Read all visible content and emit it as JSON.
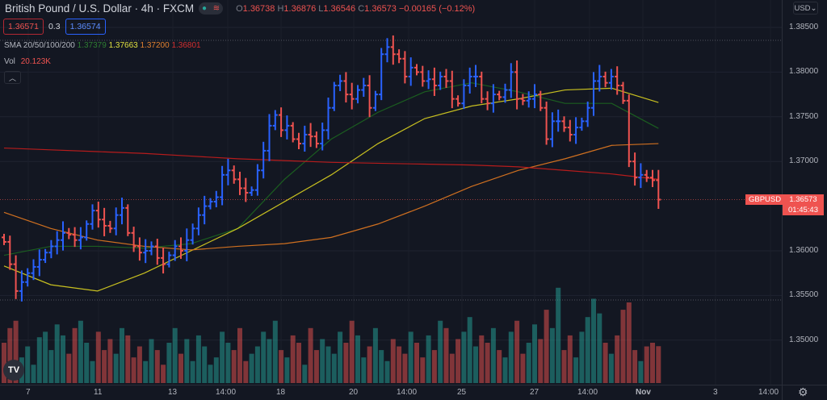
{
  "header": {
    "title": "British Pound / U.S. Dollar · 4h · FXCM",
    "ohlc": {
      "o_label": "O",
      "o": "1.36738",
      "h_label": "H",
      "h": "1.36876",
      "l_label": "L",
      "l": "1.36546",
      "c_label": "C",
      "c": "1.36573",
      "change": "−0.00165 (−0.12%)"
    },
    "bid": "1.36571",
    "spread": "0.3",
    "ask": "1.36574",
    "sma_label": "SMA 20/50/100/200",
    "sma_values": [
      "1.37379",
      "1.37663",
      "1.37200",
      "1.36801"
    ],
    "vol_label": "Vol",
    "vol_value": "20.123K",
    "collapse_icon": "chevron-up-icon"
  },
  "currency": "USD",
  "symbol_tag": "GBPUSD",
  "last_price": "1.36573",
  "countdown": "01:45:43",
  "colors": {
    "up": "#2962ff",
    "down": "#ef5350",
    "vol_up": "#26a69a",
    "vol_down": "#ef5350",
    "sma20": "#1b5e20",
    "sma50": "#c8c020",
    "sma100": "#d07020",
    "sma200": "#b71c1c",
    "bg": "#131722"
  },
  "chart_data": {
    "type": "ohlc",
    "y_ticks": [
      "1.38500",
      "1.38000",
      "1.37500",
      "1.37000",
      "1.36000",
      "1.35500",
      "1.35000"
    ],
    "ylim": [
      1.3475,
      1.3865
    ],
    "x_ticks": [
      "7",
      "11",
      "13",
      "14:00",
      "18",
      "20",
      "14:00",
      "25",
      "27",
      "14:00",
      "Nov",
      "3",
      "14:00"
    ],
    "grid": true,
    "close": [
      1.361,
      1.3585,
      1.3555,
      1.3565,
      1.3575,
      1.3582,
      1.359,
      1.3598,
      1.3605,
      1.3612,
      1.362,
      1.3618,
      1.3612,
      1.3615,
      1.363,
      1.3645,
      1.3635,
      1.3628,
      1.3625,
      1.364,
      1.3648,
      1.362,
      1.3605,
      1.3598,
      1.36,
      1.3605,
      1.3592,
      1.3585,
      1.3595,
      1.3605,
      1.36,
      1.3612,
      1.3625,
      1.364,
      1.365,
      1.3655,
      1.366,
      1.3685,
      1.369,
      1.368,
      1.367,
      1.3665,
      1.3668,
      1.369,
      1.3712,
      1.374,
      1.3752,
      1.3735,
      1.374,
      1.3725,
      1.372,
      1.373,
      1.3728,
      1.372,
      1.3735,
      1.376,
      1.3785,
      1.379,
      1.3775,
      1.377,
      1.378,
      1.3785,
      1.376,
      1.3775,
      1.382,
      1.3828,
      1.382,
      1.3815,
      1.3795,
      1.3805,
      1.38,
      1.379,
      1.3792,
      1.3785,
      1.3795,
      1.379,
      1.377,
      1.3765,
      1.3785,
      1.3795,
      1.3795,
      1.377,
      1.3765,
      1.3775,
      1.3772,
      1.378,
      1.38,
      1.377,
      1.3768,
      1.377,
      1.3775,
      1.376,
      1.3725,
      1.3745,
      1.3745,
      1.3738,
      1.373,
      1.3738,
      1.3745,
      1.376,
      1.379,
      1.3795,
      1.3788,
      1.3795,
      1.3785,
      1.3768,
      1.37,
      1.3682,
      1.3685,
      1.3682,
      1.3679,
      1.36573
    ],
    "volume_k": [
      22,
      30,
      34,
      14,
      20,
      10,
      25,
      28,
      18,
      32,
      26,
      16,
      30,
      34,
      22,
      12,
      28,
      18,
      24,
      16,
      30,
      26,
      14,
      20,
      12,
      24,
      18,
      10,
      22,
      30,
      16,
      24,
      12,
      26,
      20,
      10,
      14,
      28,
      22,
      18,
      30,
      12,
      16,
      20,
      28,
      24,
      34,
      18,
      14,
      26,
      22,
      10,
      30,
      18,
      24,
      20,
      16,
      28,
      22,
      34,
      26,
      14,
      20,
      30,
      18,
      12,
      24,
      20,
      16,
      28,
      22,
      14,
      26,
      18,
      34,
      30,
      16,
      24,
      28,
      36,
      20,
      26,
      22,
      30,
      18,
      14,
      28,
      34,
      16,
      22,
      32,
      24,
      40,
      30,
      52,
      18,
      26,
      14,
      28,
      36,
      46,
      38,
      22,
      16,
      26,
      40,
      44,
      18,
      12,
      20,
      22,
      20.123
    ],
    "sma": [
      {
        "name": "SMA 20",
        "values": [
          1.3595,
          1.3605,
          1.3605,
          1.3603,
          1.3608,
          1.3625,
          1.368,
          1.3725,
          1.3755,
          1.3778,
          1.3788,
          1.3778,
          1.3765,
          1.3765,
          1.3737
        ]
      },
      {
        "name": "SMA 50",
        "values": [
          1.3583,
          1.3562,
          1.3555,
          1.3575,
          1.36,
          1.3625,
          1.3655,
          1.3685,
          1.372,
          1.3748,
          1.3762,
          1.377,
          1.378,
          1.3782,
          1.3766
        ]
      },
      {
        "name": "SMA 100",
        "values": [
          1.3643,
          1.3625,
          1.3612,
          1.3605,
          1.3601,
          1.3605,
          1.3608,
          1.3615,
          1.363,
          1.365,
          1.3672,
          1.369,
          1.3703,
          1.3718,
          1.372
        ]
      },
      {
        "name": "SMA 200",
        "values": [
          1.3715,
          1.3713,
          1.3711,
          1.3709,
          1.3706,
          1.3703,
          1.3701,
          1.3699,
          1.3698,
          1.3697,
          1.3696,
          1.3694,
          1.369,
          1.3686,
          1.368
        ]
      }
    ]
  }
}
